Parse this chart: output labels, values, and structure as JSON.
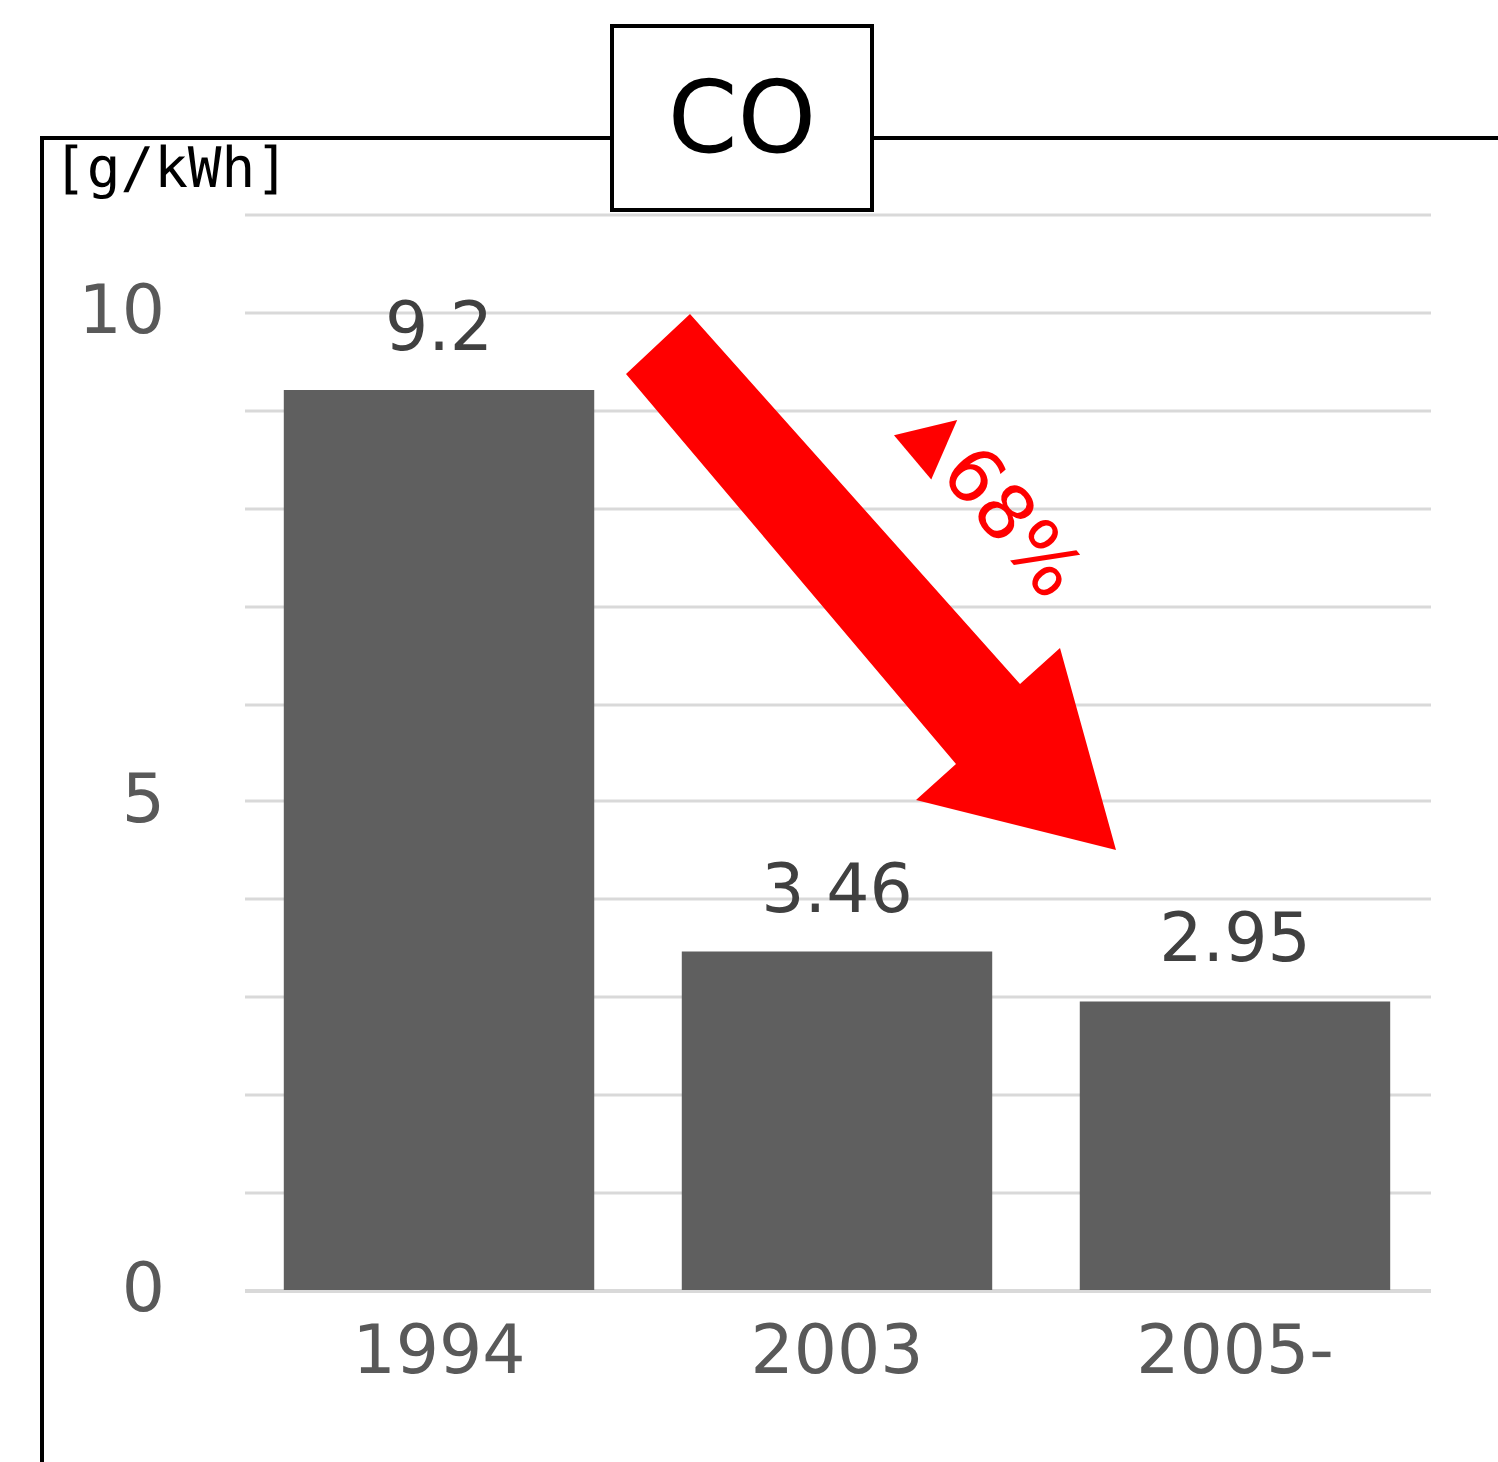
{
  "chart_data": {
    "type": "bar",
    "title": "CO",
    "ylabel": "[g/kWh]",
    "categories": [
      "1994",
      "2003",
      "2005-"
    ],
    "values": [
      9.2,
      3.46,
      2.95
    ],
    "color": "#5f5f5f",
    "ylim": [
      0,
      11
    ],
    "yticks": [
      0,
      {
        "value": 1,
        "label": null
      },
      {
        "value": 2,
        "label": null
      },
      {
        "value": 3,
        "label": null
      },
      {
        "value": 4,
        "label": null
      },
      5,
      {
        "value": 6,
        "label": null
      },
      {
        "value": 7,
        "label": null
      },
      {
        "value": 8,
        "label": null
      },
      {
        "value": 9,
        "label": null
      },
      10,
      {
        "value": 11,
        "label": null
      }
    ],
    "grid": "y",
    "data_labels": true,
    "annotations": [
      "▲68%"
    ]
  }
}
